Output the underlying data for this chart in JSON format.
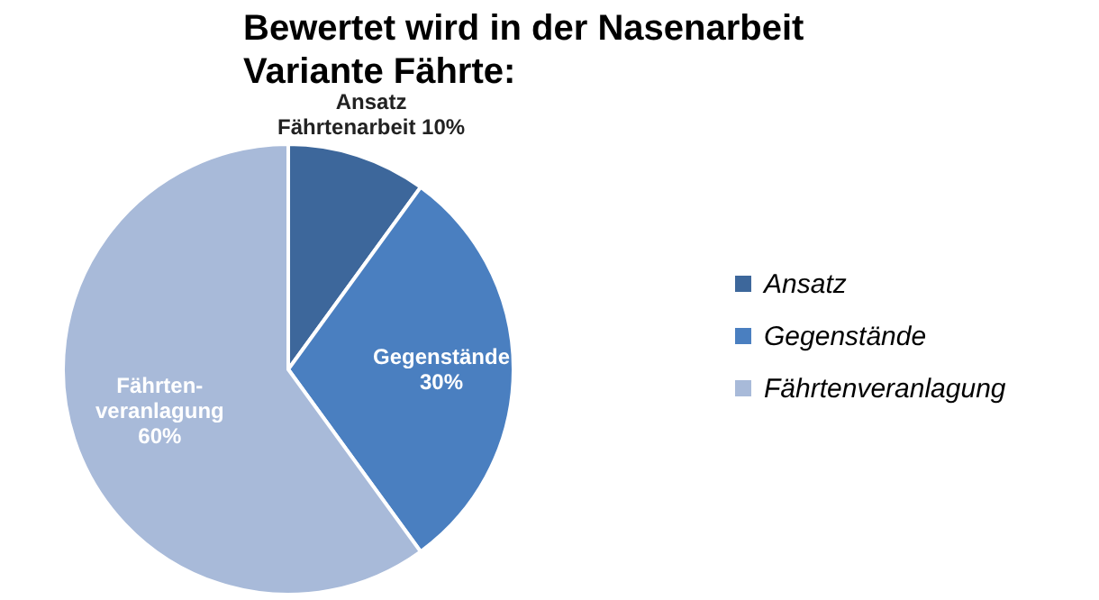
{
  "chart_data": {
    "type": "pie",
    "title": "Bewertet wird in der  Nasenarbeit\nVariante  Fährte:",
    "categories": [
      "Ansatz",
      "Gegenstände",
      "Fährtenveranlagung"
    ],
    "values": [
      10,
      30,
      60
    ],
    "colors": [
      "#3d679b",
      "#4a7fc0",
      "#a8bad9"
    ],
    "value_labels": [
      "Ansatz\nFährtenarbeit 10%",
      "Gegenstände\n30%",
      "Fährten-\nveranlagung\n60%"
    ],
    "legend": "right"
  }
}
